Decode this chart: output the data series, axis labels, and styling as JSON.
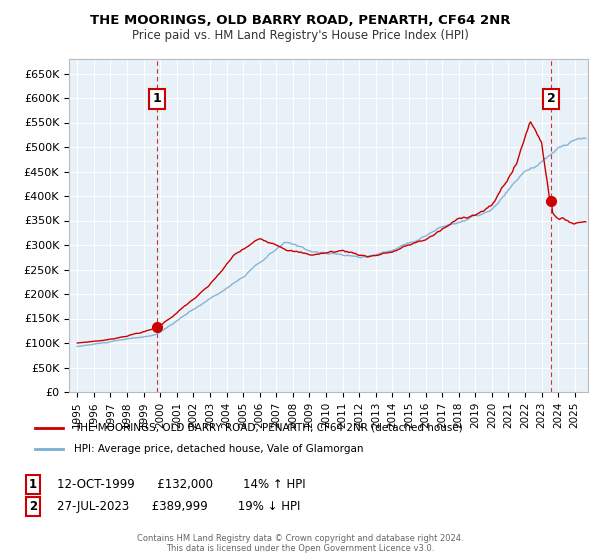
{
  "title": "THE MOORINGS, OLD BARRY ROAD, PENARTH, CF64 2NR",
  "subtitle": "Price paid vs. HM Land Registry's House Price Index (HPI)",
  "ylabel_ticks": [
    "£0",
    "£50K",
    "£100K",
    "£150K",
    "£200K",
    "£250K",
    "£300K",
    "£350K",
    "£400K",
    "£450K",
    "£500K",
    "£550K",
    "£600K",
    "£650K"
  ],
  "ytick_values": [
    0,
    50000,
    100000,
    150000,
    200000,
    250000,
    300000,
    350000,
    400000,
    450000,
    500000,
    550000,
    600000,
    650000
  ],
  "ylim": [
    0,
    680000
  ],
  "xlim_start": 1994.5,
  "xlim_end": 2025.8,
  "red_color": "#cc0000",
  "blue_color": "#7bafd4",
  "plot_bg_color": "#e8f0f8",
  "bg_color": "#ffffff",
  "grid_color": "#ffffff",
  "purchase1_x": 1999.79,
  "purchase1_y": 132000,
  "purchase1_label": "1",
  "purchase2_x": 2023.57,
  "purchase2_y": 389999,
  "purchase2_label": "2",
  "legend_line1": "THE MOORINGS, OLD BARRY ROAD, PENARTH, CF64 2NR (detached house)",
  "legend_line2": "HPI: Average price, detached house, Vale of Glamorgan",
  "annotation1_date": "12-OCT-1999",
  "annotation1_price": "£132,000",
  "annotation1_hpi": "14% ↑ HPI",
  "annotation2_date": "27-JUL-2023",
  "annotation2_price": "£389,999",
  "annotation2_hpi": "19% ↓ HPI",
  "footer": "Contains HM Land Registry data © Crown copyright and database right 2024.\nThis data is licensed under the Open Government Licence v3.0."
}
